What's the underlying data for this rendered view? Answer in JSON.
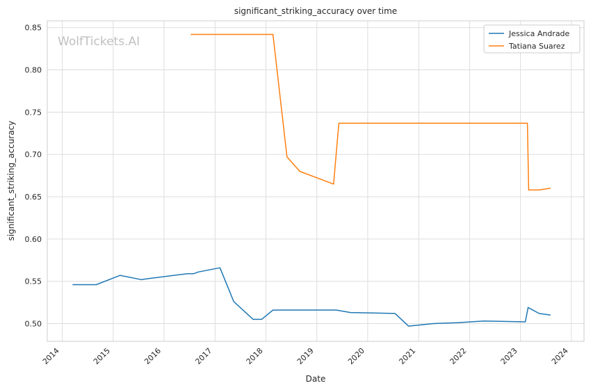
{
  "chart_data": {
    "type": "line",
    "title": "significant_striking_accuracy over time",
    "xlabel": "Date",
    "ylabel": "significant_striking_accuracy",
    "watermark": "WolfTickets.AI",
    "x_ticks": [
      "2014",
      "2015",
      "2016",
      "2017",
      "2018",
      "2019",
      "2020",
      "2021",
      "2022",
      "2023",
      "2024"
    ],
    "y_ticks": [
      "0.50",
      "0.55",
      "0.60",
      "0.65",
      "0.70",
      "0.75",
      "0.80",
      "0.85"
    ],
    "xlim": [
      "2013-09-15",
      "2024-04-01"
    ],
    "ylim": [
      0.479,
      0.858
    ],
    "grid": true,
    "legend": "top-right",
    "series": [
      {
        "name": "Jessica Andrade",
        "color": "#1f77b4",
        "points": [
          [
            "2014-03-15",
            0.546
          ],
          [
            "2014-09-01",
            0.546
          ],
          [
            "2015-02-20",
            0.557
          ],
          [
            "2015-07-20",
            0.552
          ],
          [
            "2015-09-01",
            0.553
          ],
          [
            "2016-06-15",
            0.559
          ],
          [
            "2016-08-01",
            0.559
          ],
          [
            "2016-09-01",
            0.561
          ],
          [
            "2017-02-05",
            0.566
          ],
          [
            "2017-05-15",
            0.526
          ],
          [
            "2017-10-01",
            0.505
          ],
          [
            "2017-12-01",
            0.505
          ],
          [
            "2018-02-20",
            0.516
          ],
          [
            "2018-09-01",
            0.516
          ],
          [
            "2019-05-20",
            0.516
          ],
          [
            "2019-09-01",
            0.513
          ],
          [
            "2020-07-15",
            0.512
          ],
          [
            "2020-10-20",
            0.497
          ],
          [
            "2021-04-15",
            0.5
          ],
          [
            "2021-10-01",
            0.501
          ],
          [
            "2022-04-15",
            0.503
          ],
          [
            "2023-02-05",
            0.502
          ],
          [
            "2023-02-25",
            0.519
          ],
          [
            "2023-05-15",
            0.512
          ],
          [
            "2023-08-05",
            0.51
          ]
        ]
      },
      {
        "name": "Tatiana Suarez",
        "color": "#ff7f0e",
        "points": [
          [
            "2016-07-10",
            0.842
          ],
          [
            "2018-02-20",
            0.842
          ],
          [
            "2018-06-01",
            0.697
          ],
          [
            "2018-09-01",
            0.68
          ],
          [
            "2019-05-01",
            0.665
          ],
          [
            "2019-06-08",
            0.737
          ],
          [
            "2023-02-20",
            0.737
          ],
          [
            "2023-03-01",
            0.658
          ],
          [
            "2023-05-15",
            0.658
          ],
          [
            "2023-08-05",
            0.66
          ]
        ]
      }
    ]
  }
}
